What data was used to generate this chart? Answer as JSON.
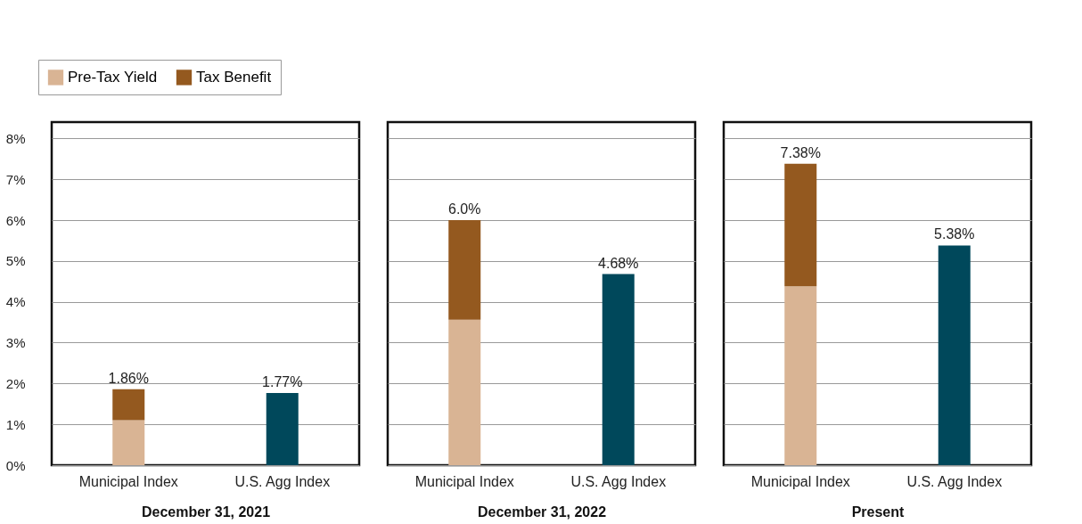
{
  "chart_data": [
    {
      "type": "bar",
      "stacked": true,
      "xlabel": "December 31, 2021",
      "categories": [
        "Municipal Index",
        "U.S. Agg Index"
      ],
      "series": [
        {
          "name": "Pre-Tax Yield",
          "color": "#d9b494",
          "values": [
            1.1,
            null
          ]
        },
        {
          "name": "Tax Benefit",
          "color": "#94591f",
          "values": [
            0.76,
            null
          ]
        },
        {
          "color": "#00485b",
          "values": [
            null,
            1.77
          ]
        }
      ],
      "totals": [
        "1.86%",
        "1.77%"
      ],
      "ylim": [
        0,
        8.4
      ],
      "yticks": [
        {
          "value": 0,
          "label": "0%"
        },
        {
          "value": 1,
          "label": "1%"
        },
        {
          "value": 2,
          "label": "2%"
        },
        {
          "value": 3,
          "label": "3%"
        },
        {
          "value": 4,
          "label": "4%"
        },
        {
          "value": 5,
          "label": "5%"
        },
        {
          "value": 6,
          "label": "6%"
        },
        {
          "value": 7,
          "label": "7%"
        },
        {
          "value": 8,
          "label": "8%"
        }
      ],
      "grid": "y",
      "legend": "top left"
    },
    {
      "type": "bar",
      "stacked": true,
      "xlabel": "December 31, 2022",
      "categories": [
        "Municipal Index",
        "U.S. Agg Index"
      ],
      "series": [
        {
          "color": "#d9b494",
          "values": [
            3.56,
            null
          ]
        },
        {
          "color": "#94591f",
          "values": [
            2.44,
            null
          ]
        },
        {
          "color": "#00485b",
          "values": [
            null,
            4.68
          ]
        }
      ],
      "totals": [
        "6.0%",
        "4.68%"
      ],
      "ylim": [
        0,
        8.4
      ],
      "yticks": [
        {
          "value": 0,
          "label": null
        },
        {
          "value": 1,
          "label": null
        },
        {
          "value": 2,
          "label": null
        },
        {
          "value": 3,
          "label": null
        },
        {
          "value": 4,
          "label": null
        },
        {
          "value": 5,
          "label": null
        },
        {
          "value": 6,
          "label": null
        },
        {
          "value": 7,
          "label": null
        },
        {
          "value": 8,
          "label": null
        }
      ],
      "grid": "y",
      "tick_labels": "x"
    },
    {
      "type": "bar",
      "stacked": true,
      "xlabel": "Present",
      "categories": [
        "Municipal Index",
        "U.S. Agg Index"
      ],
      "series": [
        {
          "color": "#d9b494",
          "values": [
            4.38,
            null
          ]
        },
        {
          "color": "#94591f",
          "values": [
            3.0,
            null
          ]
        },
        {
          "color": "#00485b",
          "values": [
            null,
            5.38
          ]
        }
      ],
      "totals": [
        "7.38%",
        "5.38%"
      ],
      "ylim": [
        0,
        8.4
      ],
      "yticks": [
        {
          "value": 0,
          "label": null
        },
        {
          "value": 1,
          "label": null
        },
        {
          "value": 2,
          "label": null
        },
        {
          "value": 3,
          "label": null
        },
        {
          "value": 4,
          "label": null
        },
        {
          "value": 5,
          "label": null
        },
        {
          "value": 6,
          "label": null
        },
        {
          "value": 7,
          "label": null
        },
        {
          "value": 8,
          "label": null
        }
      ],
      "grid": "y",
      "tick_labels": "x"
    }
  ]
}
